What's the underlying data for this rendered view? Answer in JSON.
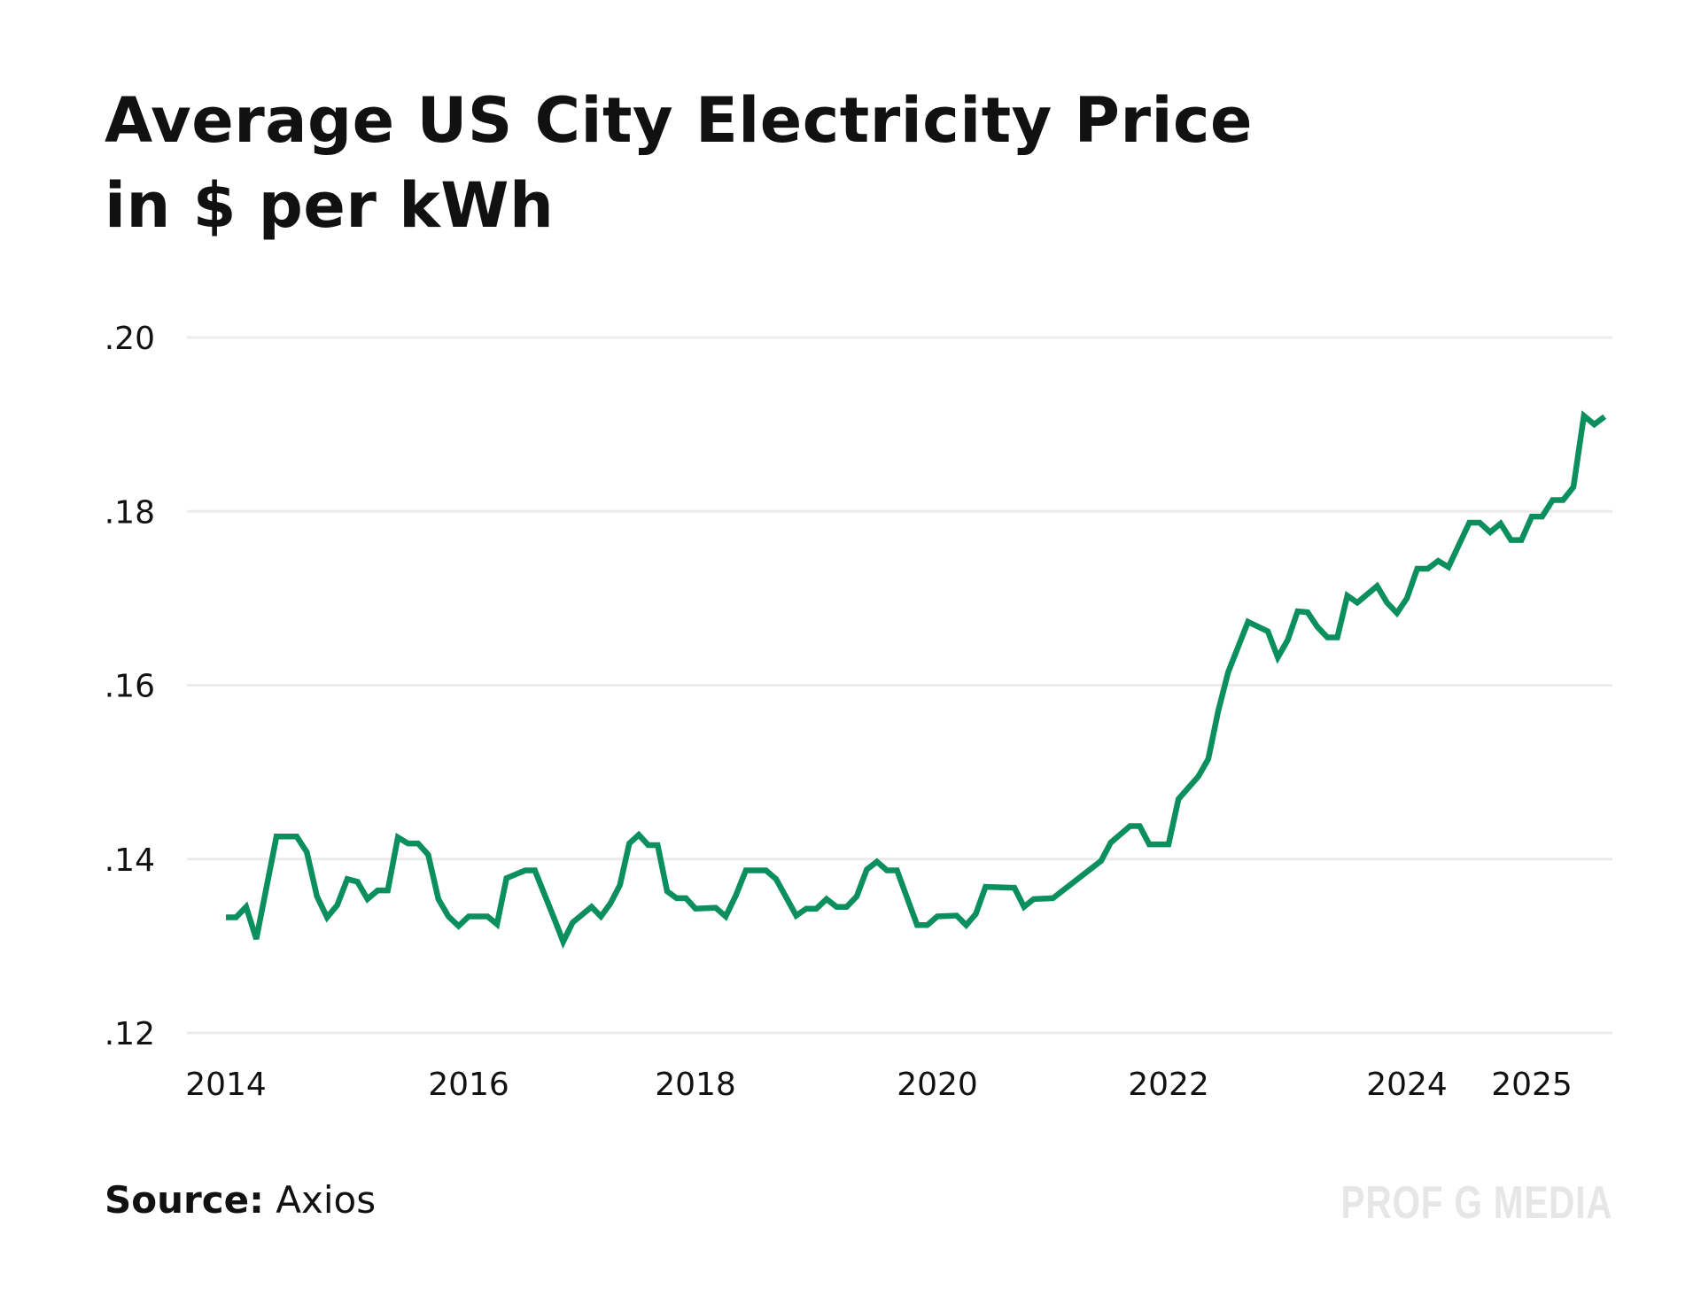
{
  "chart_data": {
    "type": "line",
    "title": "Average US City Electricity Price",
    "subtitle": "in $ per kWh",
    "xlabel": "",
    "ylabel": "",
    "ylim": [
      0.12,
      0.2
    ],
    "yticks": [
      ".20",
      ".18",
      ".16",
      ".14",
      ".12"
    ],
    "ytick_values": [
      0.2,
      0.18,
      0.16,
      0.14,
      0.12
    ],
    "xticks": [
      "2014",
      "2016",
      "2018",
      "2020",
      "2022",
      "2024",
      "2025"
    ],
    "grid": "horizontal",
    "line_color": "#0b8f5f",
    "series": [
      {
        "points": [
          [
            "2014-01",
            0.1333
          ],
          [
            "2014-02",
            0.1333
          ],
          [
            "2014-03",
            0.1345
          ],
          [
            "2014-04",
            0.1308
          ],
          [
            "2014-06",
            0.1426
          ],
          [
            "2014-08",
            0.1426
          ],
          [
            "2014-09",
            0.1408
          ],
          [
            "2014-10",
            0.1357
          ],
          [
            "2014-11",
            0.1333
          ],
          [
            "2014-12",
            0.1347
          ],
          [
            "2015-01",
            0.1377
          ],
          [
            "2015-02",
            0.1374
          ],
          [
            "2015-03",
            0.1354
          ],
          [
            "2015-04",
            0.1364
          ],
          [
            "2015-05",
            0.1364
          ],
          [
            "2015-06",
            0.1425
          ],
          [
            "2015-07",
            0.1418
          ],
          [
            "2015-08",
            0.1418
          ],
          [
            "2015-09",
            0.1405
          ],
          [
            "2015-10",
            0.1354
          ],
          [
            "2015-11",
            0.1334
          ],
          [
            "2015-12",
            0.1323
          ],
          [
            "2016-01",
            0.1334
          ],
          [
            "2016-03",
            0.1334
          ],
          [
            "2016-04",
            0.1325
          ],
          [
            "2016-05",
            0.1378
          ],
          [
            "2016-07",
            0.1387
          ],
          [
            "2016-08",
            0.1387
          ],
          [
            "2016-10",
            0.1333
          ],
          [
            "2016-11",
            0.1305
          ],
          [
            "2016-12",
            0.1327
          ],
          [
            "2017-02",
            0.1345
          ],
          [
            "2017-03",
            0.1334
          ],
          [
            "2017-04",
            0.1349
          ],
          [
            "2017-05",
            0.137
          ],
          [
            "2017-06",
            0.1418
          ],
          [
            "2017-07",
            0.1428
          ],
          [
            "2017-08",
            0.1416
          ],
          [
            "2017-09",
            0.1416
          ],
          [
            "2017-10",
            0.1363
          ],
          [
            "2017-11",
            0.1355
          ],
          [
            "2017-12",
            0.1355
          ],
          [
            "2018-01",
            0.1343
          ],
          [
            "2018-03",
            0.1344
          ],
          [
            "2018-04",
            0.1334
          ],
          [
            "2018-05",
            0.1358
          ],
          [
            "2018-06",
            0.1387
          ],
          [
            "2018-08",
            0.1387
          ],
          [
            "2018-09",
            0.1377
          ],
          [
            "2018-11",
            0.1335
          ],
          [
            "2018-12",
            0.1343
          ],
          [
            "2019-01",
            0.1343
          ],
          [
            "2019-02",
            0.1354
          ],
          [
            "2019-03",
            0.1345
          ],
          [
            "2019-04",
            0.1345
          ],
          [
            "2019-05",
            0.1357
          ],
          [
            "2019-06",
            0.1388
          ],
          [
            "2019-07",
            0.1397
          ],
          [
            "2019-08",
            0.1387
          ],
          [
            "2019-09",
            0.1387
          ],
          [
            "2019-11",
            0.1324
          ],
          [
            "2019-12",
            0.1324
          ],
          [
            "2020-01",
            0.1334
          ],
          [
            "2020-03",
            0.1335
          ],
          [
            "2020-04",
            0.1324
          ],
          [
            "2020-05",
            0.1337
          ],
          [
            "2020-06",
            0.1368
          ],
          [
            "2020-09",
            0.1367
          ],
          [
            "2020-10",
            0.1345
          ],
          [
            "2020-11",
            0.1354
          ],
          [
            "2021-01",
            0.1355
          ],
          [
            "2021-06",
            0.1398
          ],
          [
            "2021-07",
            0.1419
          ],
          [
            "2021-09",
            0.1438
          ],
          [
            "2021-10",
            0.1438
          ],
          [
            "2021-11",
            0.1417
          ],
          [
            "2022-01",
            0.1417
          ],
          [
            "2022-02",
            0.1469
          ],
          [
            "2022-04",
            0.1495
          ],
          [
            "2022-05",
            0.1515
          ],
          [
            "2022-06",
            0.157
          ],
          [
            "2022-07",
            0.1615
          ],
          [
            "2022-09",
            0.1673
          ],
          [
            "2022-11",
            0.1662
          ],
          [
            "2022-12",
            0.1632
          ],
          [
            "2023-01",
            0.1652
          ],
          [
            "2023-02",
            0.1685
          ],
          [
            "2023-03",
            0.1684
          ],
          [
            "2023-04",
            0.1667
          ],
          [
            "2023-05",
            0.1655
          ],
          [
            "2023-06",
            0.1655
          ],
          [
            "2023-07",
            0.1703
          ],
          [
            "2023-08",
            0.1695
          ],
          [
            "2023-10",
            0.1714
          ],
          [
            "2023-11",
            0.1695
          ],
          [
            "2023-12",
            0.1683
          ],
          [
            "2024-01",
            0.17
          ],
          [
            "2024-02",
            0.1734
          ],
          [
            "2024-03",
            0.1734
          ],
          [
            "2024-04",
            0.1743
          ],
          [
            "2024-05",
            0.1736
          ],
          [
            "2024-07",
            0.1787
          ],
          [
            "2024-08",
            0.1787
          ],
          [
            "2024-09",
            0.1776
          ],
          [
            "2024-10",
            0.1786
          ],
          [
            "2024-11",
            0.1767
          ],
          [
            "2024-12",
            0.1767
          ],
          [
            "2025-01",
            0.1794
          ],
          [
            "2025-02",
            0.1794
          ],
          [
            "2025-03",
            0.1813
          ],
          [
            "2025-04",
            0.1813
          ],
          [
            "2025-05",
            0.1828
          ],
          [
            "2025-06",
            0.191
          ],
          [
            "2025-07",
            0.19
          ],
          [
            "2025-08",
            0.1909
          ]
        ]
      }
    ]
  },
  "footer": {
    "source_label": "Source:",
    "source_value": "Axios",
    "watermark": "PROF G MEDIA"
  }
}
